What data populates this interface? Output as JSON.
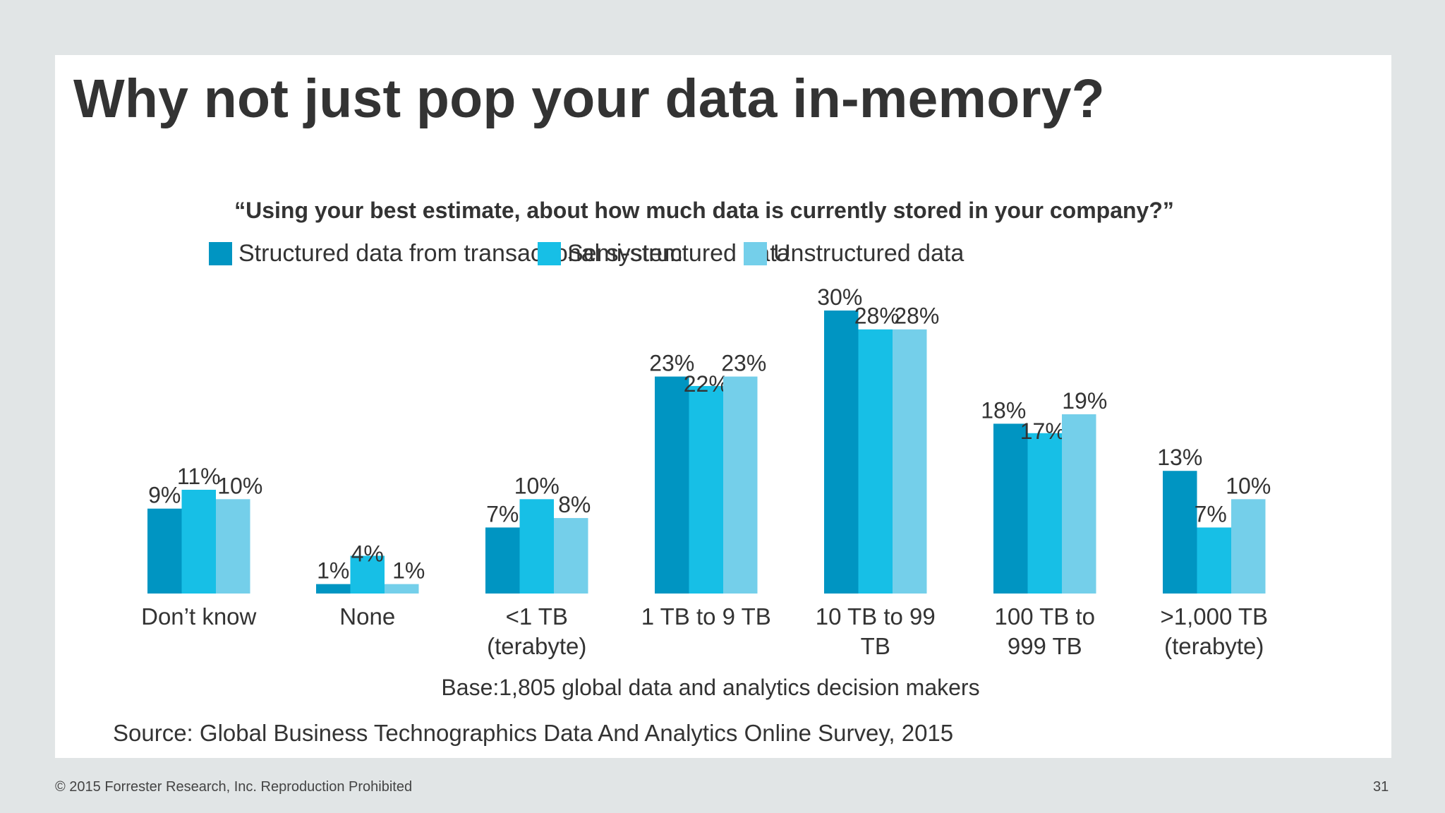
{
  "slide": {
    "title": "Why not just pop your data in-memory?"
  },
  "chart_data": {
    "type": "bar",
    "title": "“Using your best estimate, about how much data is currently stored in your company?”",
    "categories": [
      [
        "Don’t know"
      ],
      [
        "None"
      ],
      [
        "<1 TB",
        "(terabyte)"
      ],
      [
        "1 TB to 9 TB"
      ],
      [
        "10 TB to 99",
        "TB"
      ],
      [
        "100 TB to",
        "999 TB"
      ],
      [
        ">1,000 TB",
        "(terabyte)"
      ]
    ],
    "series": [
      {
        "name": "Structured data from transactional system",
        "color": "#0095c2",
        "values": [
          9,
          1,
          7,
          23,
          30,
          18,
          13
        ]
      },
      {
        "name": "Semi-structured data",
        "color": "#17bfe6",
        "values": [
          11,
          4,
          10,
          22,
          28,
          17,
          7
        ]
      },
      {
        "name": "Unstructured data",
        "color": "#74cfea",
        "values": [
          10,
          1,
          8,
          23,
          28,
          19,
          10
        ]
      }
    ],
    "value_suffix": "%",
    "ylim": [
      0,
      30
    ],
    "legend_position": "top",
    "grid": false,
    "note": "Base:1,805 global data and analytics decision makers",
    "source": "Source: Global Business Technographics Data And Analytics Online Survey, 2015"
  },
  "footer": {
    "copyright": "© 2015 Forrester Research, Inc. Reproduction Prohibited",
    "page_number": "31"
  }
}
